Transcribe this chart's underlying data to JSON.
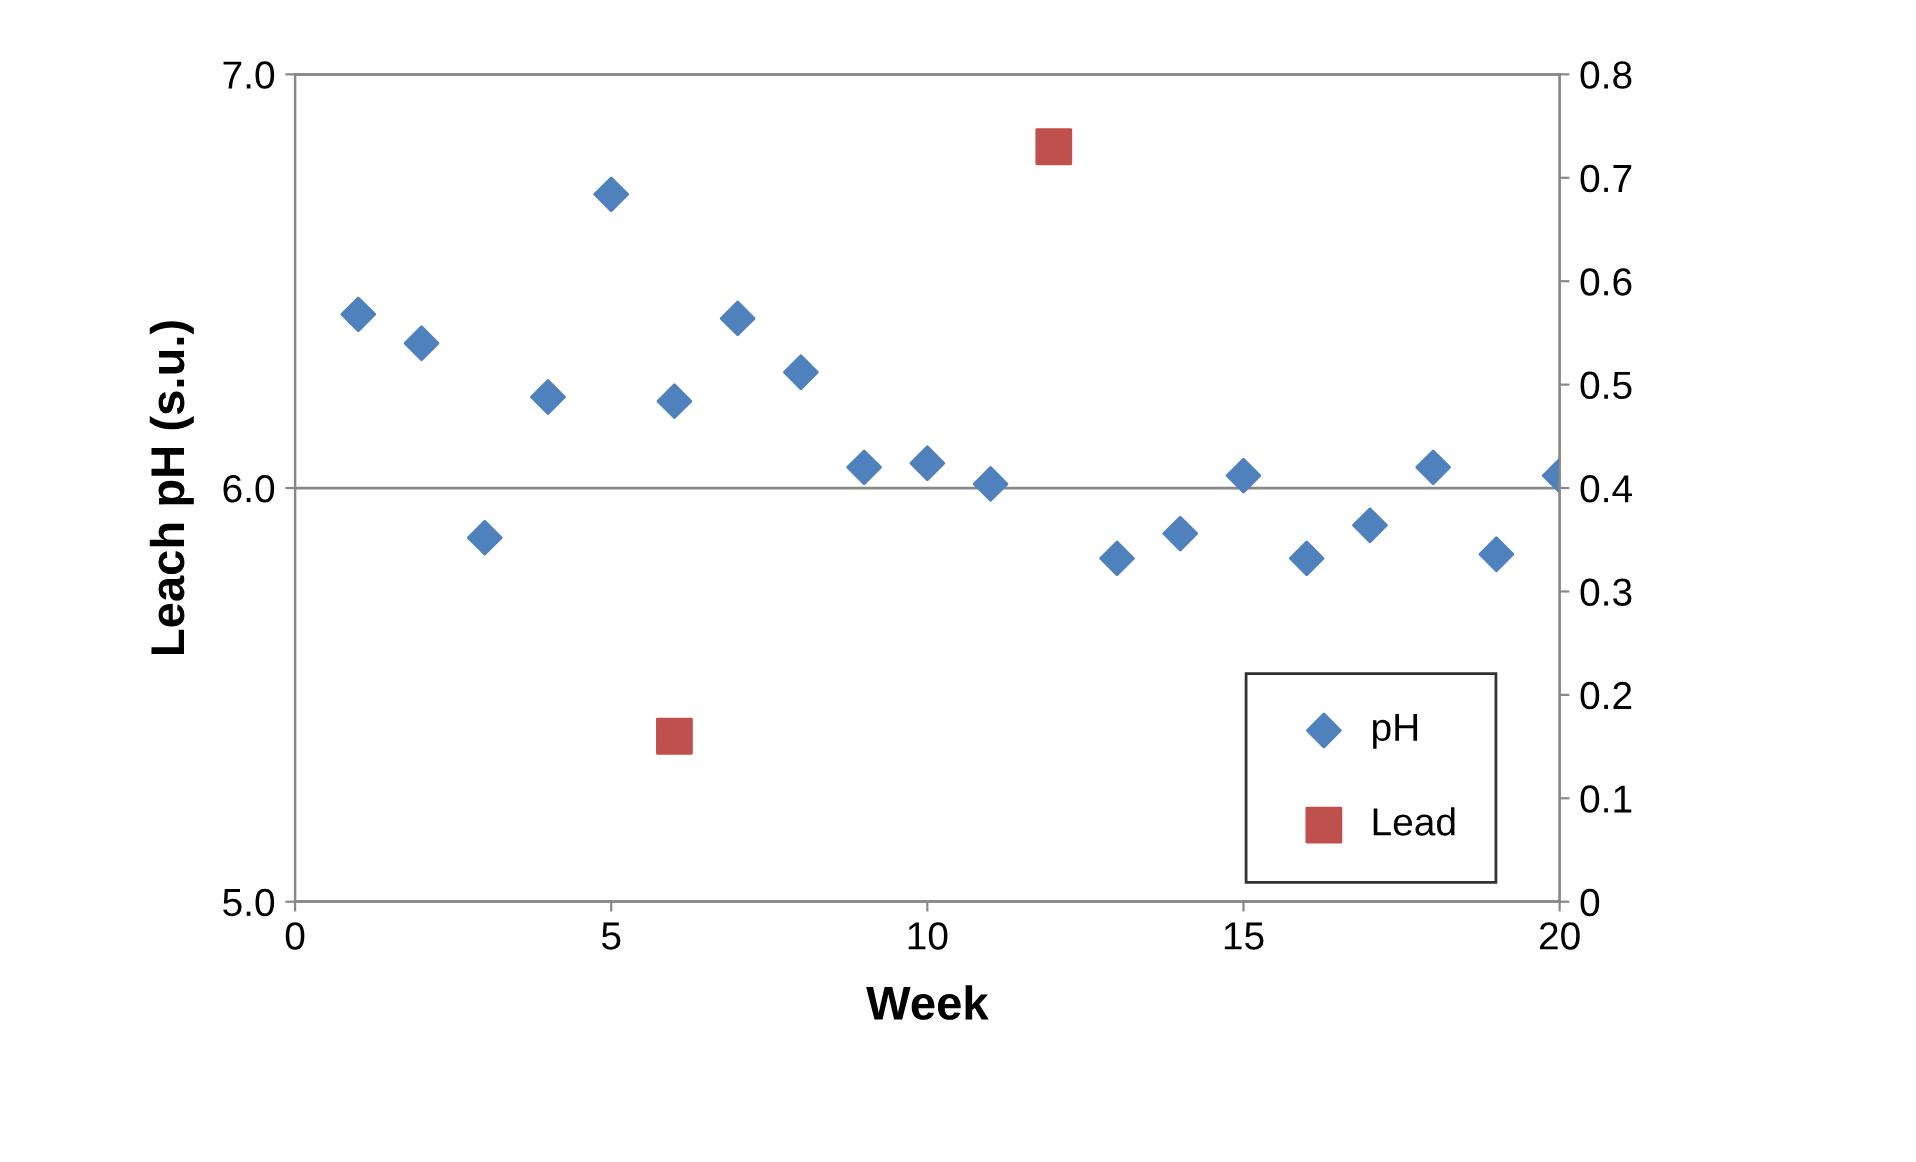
{
  "chart_data": {
    "type": "scatter",
    "xlabel": "Week",
    "ylabel": "Leach pH (s.u.)",
    "xlim": [
      0,
      20
    ],
    "xticks": [
      0,
      5,
      10,
      15,
      20
    ],
    "ylim": [
      5.0,
      7.0
    ],
    "yticks": [
      {
        "value": 5.0,
        "label": "5.0"
      },
      {
        "value": 6.0,
        "label": "6.0"
      },
      {
        "value": 7.0,
        "label": "7.0"
      }
    ],
    "y2lim": [
      0,
      0.8
    ],
    "y2ticks": [
      0,
      0.1,
      0.2,
      0.3,
      0.4,
      0.5,
      0.6,
      0.7,
      0.8
    ],
    "grid": "y",
    "legend": "bottom right",
    "series": [
      {
        "name": "pH",
        "color": "#4f81bd",
        "marker": "diamond",
        "x": [
          1,
          2,
          3,
          4,
          5,
          6,
          7,
          8,
          9,
          10,
          11,
          13,
          14,
          15,
          16,
          17,
          18,
          19,
          20
        ],
        "values": [
          6.42,
          6.35,
          5.88,
          6.22,
          6.71,
          6.21,
          6.41,
          6.28,
          6.05,
          6.06,
          6.01,
          5.83,
          5.89,
          6.03,
          5.83,
          5.91,
          6.05,
          5.84,
          6.03
        ]
      },
      {
        "name": "Lead",
        "color": "#c0504d",
        "marker": "square",
        "axis": "y2",
        "x": [
          6,
          12
        ],
        "values": [
          0.16,
          0.73
        ]
      }
    ]
  }
}
